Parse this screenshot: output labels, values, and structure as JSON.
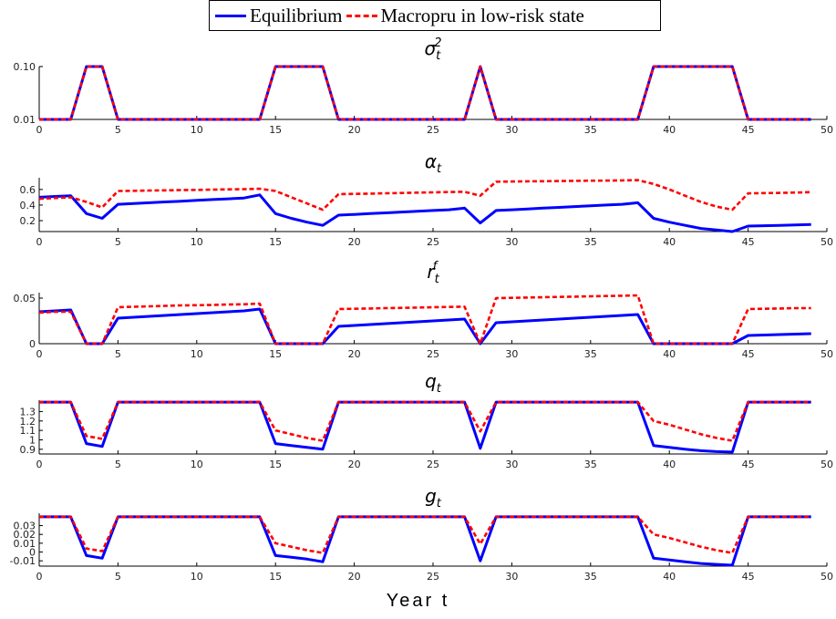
{
  "legend": {
    "equilibrium": "Equilibrium",
    "macropru": "Macropru in low-risk state"
  },
  "colors": {
    "equilibrium": "#0000ff",
    "macropru": "#ff0000"
  },
  "xlabel": "Year t",
  "chart_data": [
    {
      "type": "line",
      "title": "σ_t^2",
      "xlim": [
        0,
        50
      ],
      "xticks": [
        0,
        5,
        10,
        15,
        20,
        25,
        30,
        35,
        40,
        45,
        50
      ],
      "yticks": [
        0.01,
        0.1
      ],
      "yticklabels": [
        "0.01",
        "0.10"
      ],
      "ylim": [
        0.01,
        0.1
      ],
      "x": [
        0,
        1,
        2,
        3,
        4,
        5,
        6,
        7,
        8,
        9,
        10,
        11,
        12,
        13,
        14,
        15,
        16,
        17,
        18,
        19,
        20,
        21,
        22,
        23,
        24,
        25,
        26,
        27,
        28,
        29,
        30,
        31,
        32,
        33,
        34,
        35,
        36,
        37,
        38,
        39,
        40,
        41,
        42,
        43,
        44,
        45,
        46,
        47,
        48,
        49
      ],
      "series": [
        {
          "name": "Equilibrium",
          "values": [
            0.01,
            0.01,
            0.01,
            0.1,
            0.1,
            0.01,
            0.01,
            0.01,
            0.01,
            0.01,
            0.01,
            0.01,
            0.01,
            0.01,
            0.01,
            0.1,
            0.1,
            0.1,
            0.1,
            0.01,
            0.01,
            0.01,
            0.01,
            0.01,
            0.01,
            0.01,
            0.01,
            0.01,
            0.1,
            0.01,
            0.01,
            0.01,
            0.01,
            0.01,
            0.01,
            0.01,
            0.01,
            0.01,
            0.01,
            0.1,
            0.1,
            0.1,
            0.1,
            0.1,
            0.1,
            0.01,
            0.01,
            0.01,
            0.01,
            0.01
          ]
        },
        {
          "name": "Macropru in low-risk state",
          "values": [
            0.01,
            0.01,
            0.01,
            0.1,
            0.1,
            0.01,
            0.01,
            0.01,
            0.01,
            0.01,
            0.01,
            0.01,
            0.01,
            0.01,
            0.01,
            0.1,
            0.1,
            0.1,
            0.1,
            0.01,
            0.01,
            0.01,
            0.01,
            0.01,
            0.01,
            0.01,
            0.01,
            0.01,
            0.1,
            0.01,
            0.01,
            0.01,
            0.01,
            0.01,
            0.01,
            0.01,
            0.01,
            0.01,
            0.01,
            0.1,
            0.1,
            0.1,
            0.1,
            0.1,
            0.1,
            0.01,
            0.01,
            0.01,
            0.01,
            0.01
          ]
        }
      ]
    },
    {
      "type": "line",
      "title": "α_t",
      "xlim": [
        0,
        50
      ],
      "xticks": [
        0,
        5,
        10,
        15,
        20,
        25,
        30,
        35,
        40,
        45,
        50
      ],
      "yticks": [
        0.2,
        0.4,
        0.6
      ],
      "yticklabels": [
        "0.2",
        "0.4",
        "0.6"
      ],
      "ylim": [
        0.06,
        0.75
      ],
      "x": [
        0,
        1,
        2,
        3,
        4,
        5,
        6,
        7,
        8,
        9,
        10,
        11,
        12,
        13,
        14,
        15,
        16,
        17,
        18,
        19,
        20,
        21,
        22,
        23,
        24,
        25,
        26,
        27,
        28,
        29,
        30,
        31,
        32,
        33,
        34,
        35,
        36,
        37,
        38,
        39,
        40,
        41,
        42,
        43,
        44,
        45,
        46,
        47,
        48,
        49
      ],
      "series": [
        {
          "name": "Equilibrium",
          "values": [
            0.5,
            0.51,
            0.52,
            0.29,
            0.23,
            0.41,
            0.42,
            0.43,
            0.44,
            0.45,
            0.46,
            0.47,
            0.48,
            0.49,
            0.53,
            0.29,
            0.23,
            0.18,
            0.14,
            0.27,
            0.28,
            0.29,
            0.3,
            0.31,
            0.32,
            0.33,
            0.34,
            0.36,
            0.17,
            0.33,
            0.34,
            0.35,
            0.36,
            0.37,
            0.38,
            0.39,
            0.4,
            0.41,
            0.43,
            0.23,
            0.18,
            0.14,
            0.1,
            0.08,
            0.06,
            0.13,
            0.135,
            0.14,
            0.145,
            0.15
          ]
        },
        {
          "name": "Macropru in low-risk state",
          "values": [
            0.48,
            0.49,
            0.5,
            0.44,
            0.37,
            0.58,
            0.583,
            0.586,
            0.589,
            0.592,
            0.595,
            0.598,
            0.601,
            0.604,
            0.61,
            0.58,
            0.5,
            0.42,
            0.34,
            0.54,
            0.543,
            0.547,
            0.551,
            0.555,
            0.559,
            0.563,
            0.567,
            0.57,
            0.52,
            0.7,
            0.702,
            0.704,
            0.706,
            0.708,
            0.71,
            0.712,
            0.714,
            0.716,
            0.72,
            0.67,
            0.6,
            0.52,
            0.44,
            0.38,
            0.34,
            0.55,
            0.553,
            0.556,
            0.56,
            0.565
          ]
        }
      ]
    },
    {
      "type": "line",
      "title": "r_t^f",
      "xlim": [
        0,
        50
      ],
      "xticks": [
        0,
        5,
        10,
        15,
        20,
        25,
        30,
        35,
        40,
        45,
        50
      ],
      "yticks": [
        0,
        0.05
      ],
      "yticklabels": [
        "0",
        "0.05"
      ],
      "ylim": [
        0,
        0.056
      ],
      "x": [
        0,
        1,
        2,
        3,
        4,
        5,
        6,
        7,
        8,
        9,
        10,
        11,
        12,
        13,
        14,
        15,
        16,
        17,
        18,
        19,
        20,
        21,
        22,
        23,
        24,
        25,
        26,
        27,
        28,
        29,
        30,
        31,
        32,
        33,
        34,
        35,
        36,
        37,
        38,
        39,
        40,
        41,
        42,
        43,
        44,
        45,
        46,
        47,
        48,
        49
      ],
      "series": [
        {
          "name": "Equilibrium",
          "values": [
            0.035,
            0.036,
            0.037,
            0,
            0,
            0.028,
            0.029,
            0.03,
            0.031,
            0.032,
            0.033,
            0.034,
            0.035,
            0.036,
            0.038,
            0,
            0,
            0,
            0,
            0.019,
            0.02,
            0.021,
            0.022,
            0.023,
            0.024,
            0.025,
            0.026,
            0.027,
            0,
            0.023,
            0.024,
            0.025,
            0.026,
            0.027,
            0.028,
            0.029,
            0.03,
            0.031,
            0.032,
            0,
            0,
            0,
            0,
            0,
            0,
            0.009,
            0.0095,
            0.01,
            0.0105,
            0.011
          ]
        },
        {
          "name": "Macropru in low-risk state",
          "values": [
            0.034,
            0.035,
            0.035,
            0,
            0,
            0.04,
            0.0405,
            0.041,
            0.0415,
            0.042,
            0.0422,
            0.0425,
            0.043,
            0.0432,
            0.044,
            0,
            0,
            0,
            0,
            0.038,
            0.0383,
            0.0386,
            0.039,
            0.0393,
            0.0396,
            0.04,
            0.0403,
            0.0406,
            0,
            0.05,
            0.0503,
            0.0506,
            0.051,
            0.0513,
            0.0516,
            0.052,
            0.0523,
            0.0526,
            0.053,
            0,
            0,
            0,
            0,
            0,
            0,
            0.038,
            0.0383,
            0.0386,
            0.039,
            0.039
          ]
        }
      ]
    },
    {
      "type": "line",
      "title": "q_t",
      "xlim": [
        0,
        50
      ],
      "xticks": [
        0,
        5,
        10,
        15,
        20,
        25,
        30,
        35,
        40,
        45,
        50
      ],
      "yticks": [
        0.9,
        1,
        1.1,
        1.2,
        1.3
      ],
      "yticklabels": [
        "0.9",
        "1",
        "1.1",
        "1.2",
        "1.3"
      ],
      "ylim": [
        0.85,
        1.42
      ],
      "x": [
        0,
        1,
        2,
        3,
        4,
        5,
        6,
        7,
        8,
        9,
        10,
        11,
        12,
        13,
        14,
        15,
        16,
        17,
        18,
        19,
        20,
        21,
        22,
        23,
        24,
        25,
        26,
        27,
        28,
        29,
        30,
        31,
        32,
        33,
        34,
        35,
        36,
        37,
        38,
        39,
        40,
        41,
        42,
        43,
        44,
        45,
        46,
        47,
        48,
        49
      ],
      "series": [
        {
          "name": "Equilibrium",
          "values": [
            1.4,
            1.4,
            1.4,
            0.96,
            0.93,
            1.4,
            1.4,
            1.4,
            1.4,
            1.4,
            1.4,
            1.4,
            1.4,
            1.4,
            1.4,
            0.96,
            0.94,
            0.92,
            0.9,
            1.4,
            1.4,
            1.4,
            1.4,
            1.4,
            1.4,
            1.4,
            1.4,
            1.4,
            0.91,
            1.4,
            1.4,
            1.4,
            1.4,
            1.4,
            1.4,
            1.4,
            1.4,
            1.4,
            1.4,
            0.94,
            0.92,
            0.9,
            0.885,
            0.875,
            0.87,
            1.4,
            1.4,
            1.4,
            1.4,
            1.4
          ]
        },
        {
          "name": "Macropru in low-risk state",
          "values": [
            1.4,
            1.4,
            1.4,
            1.04,
            1.01,
            1.4,
            1.4,
            1.4,
            1.4,
            1.4,
            1.4,
            1.4,
            1.4,
            1.4,
            1.4,
            1.1,
            1.06,
            1.02,
            0.99,
            1.4,
            1.4,
            1.4,
            1.4,
            1.4,
            1.4,
            1.4,
            1.4,
            1.4,
            1.09,
            1.4,
            1.4,
            1.4,
            1.4,
            1.4,
            1.4,
            1.4,
            1.4,
            1.4,
            1.4,
            1.2,
            1.16,
            1.11,
            1.06,
            1.02,
            0.99,
            1.4,
            1.4,
            1.4,
            1.4,
            1.4
          ]
        }
      ]
    },
    {
      "type": "line",
      "title": "g_t",
      "xlim": [
        0,
        50
      ],
      "xticks": [
        0,
        5,
        10,
        15,
        20,
        25,
        30,
        35,
        40,
        45,
        50
      ],
      "yticks": [
        -0.01,
        0,
        0.01,
        0.02,
        0.03
      ],
      "yticklabels": [
        "-0.01",
        "0",
        "0.01",
        "0.02",
        "0.03"
      ],
      "ylim": [
        -0.016,
        0.044
      ],
      "x": [
        0,
        1,
        2,
        3,
        4,
        5,
        6,
        7,
        8,
        9,
        10,
        11,
        12,
        13,
        14,
        15,
        16,
        17,
        18,
        19,
        20,
        21,
        22,
        23,
        24,
        25,
        26,
        27,
        28,
        29,
        30,
        31,
        32,
        33,
        34,
        35,
        36,
        37,
        38,
        39,
        40,
        41,
        42,
        43,
        44,
        45,
        46,
        47,
        48,
        49
      ],
      "series": [
        {
          "name": "Equilibrium",
          "values": [
            0.04,
            0.04,
            0.04,
            -0.004,
            -0.007,
            0.04,
            0.04,
            0.04,
            0.04,
            0.04,
            0.04,
            0.04,
            0.04,
            0.04,
            0.04,
            -0.004,
            -0.006,
            -0.008,
            -0.011,
            0.04,
            0.04,
            0.04,
            0.04,
            0.04,
            0.04,
            0.04,
            0.04,
            0.04,
            -0.01,
            0.04,
            0.04,
            0.04,
            0.04,
            0.04,
            0.04,
            0.04,
            0.04,
            0.04,
            0.04,
            -0.007,
            -0.009,
            -0.011,
            -0.013,
            -0.014,
            -0.015,
            0.04,
            0.04,
            0.04,
            0.04,
            0.04
          ]
        },
        {
          "name": "Macropru in low-risk state",
          "values": [
            0.04,
            0.04,
            0.04,
            0.004,
            0.001,
            0.04,
            0.04,
            0.04,
            0.04,
            0.04,
            0.04,
            0.04,
            0.04,
            0.04,
            0.04,
            0.01,
            0.006,
            0.002,
            -0.001,
            0.04,
            0.04,
            0.04,
            0.04,
            0.04,
            0.04,
            0.04,
            0.04,
            0.04,
            0.009,
            0.04,
            0.04,
            0.04,
            0.04,
            0.04,
            0.04,
            0.04,
            0.04,
            0.04,
            0.04,
            0.02,
            0.016,
            0.011,
            0.006,
            0.002,
            -0.001,
            0.04,
            0.04,
            0.04,
            0.04,
            0.04
          ]
        }
      ]
    }
  ]
}
